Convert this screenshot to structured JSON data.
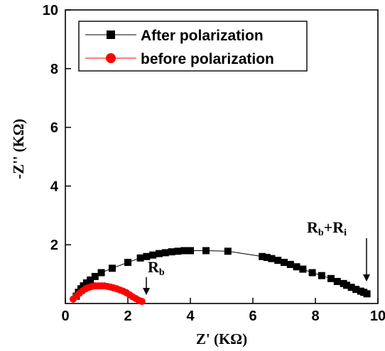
{
  "chart_data": {
    "type": "scatter",
    "xlabel": "Z' (KΩ)",
    "ylabel": "-Z'' (KΩ)",
    "xlim": [
      0,
      10
    ],
    "ylim": [
      0,
      10
    ],
    "xticks": [
      "0",
      "2",
      "4",
      "6",
      "8",
      "10"
    ],
    "yticks": [
      "2",
      "4",
      "6",
      "8",
      "10"
    ],
    "grid": false,
    "legend_position": "top-left",
    "series": [
      {
        "name": "After polarization",
        "color": "#000000",
        "marker": "square",
        "x": [
          0.35,
          0.42,
          0.5,
          0.58,
          0.68,
          0.8,
          0.95,
          1.15,
          1.5,
          2.0,
          2.4,
          2.6,
          2.8,
          3.0,
          3.2,
          3.4,
          3.6,
          3.8,
          4.0,
          4.5,
          5.2,
          6.3,
          6.45,
          6.6,
          6.8,
          7.0,
          7.2,
          7.4,
          7.6,
          7.9,
          8.2,
          8.5,
          8.7,
          8.9,
          9.0,
          9.15,
          9.3,
          9.45,
          9.55,
          9.65
        ],
        "y": [
          0.25,
          0.38,
          0.5,
          0.6,
          0.7,
          0.8,
          0.92,
          1.05,
          1.2,
          1.4,
          1.55,
          1.6,
          1.65,
          1.7,
          1.73,
          1.76,
          1.78,
          1.8,
          1.8,
          1.8,
          1.78,
          1.6,
          1.57,
          1.53,
          1.47,
          1.4,
          1.33,
          1.25,
          1.17,
          1.05,
          0.95,
          0.85,
          0.75,
          0.68,
          0.62,
          0.55,
          0.48,
          0.42,
          0.38,
          0.33
        ]
      },
      {
        "name": "before polarization",
        "color": "#ff0000",
        "marker": "circle",
        "x": [
          0.25,
          0.35,
          0.45,
          0.55,
          0.65,
          0.75,
          0.85,
          0.95,
          1.05,
          1.15,
          1.25,
          1.35,
          1.45,
          1.55,
          1.65,
          1.75,
          1.85,
          1.95,
          2.05,
          2.15,
          2.25,
          2.35,
          2.45
        ],
        "y": [
          0.15,
          0.25,
          0.35,
          0.43,
          0.5,
          0.55,
          0.58,
          0.6,
          0.6,
          0.6,
          0.6,
          0.58,
          0.56,
          0.53,
          0.5,
          0.46,
          0.42,
          0.37,
          0.3,
          0.23,
          0.17,
          0.11,
          0.07
        ]
      }
    ],
    "annotations": [
      {
        "text": "R",
        "sub": "b",
        "x": 2.6,
        "y": 1.2,
        "arrow_to": [
          2.6,
          0.25
        ]
      },
      {
        "text": "R",
        "sub": "b",
        "text2": "+R",
        "sub2": "i",
        "x": 9.7,
        "y": 2.25,
        "arrow_to": [
          9.7,
          0.7
        ]
      }
    ]
  }
}
